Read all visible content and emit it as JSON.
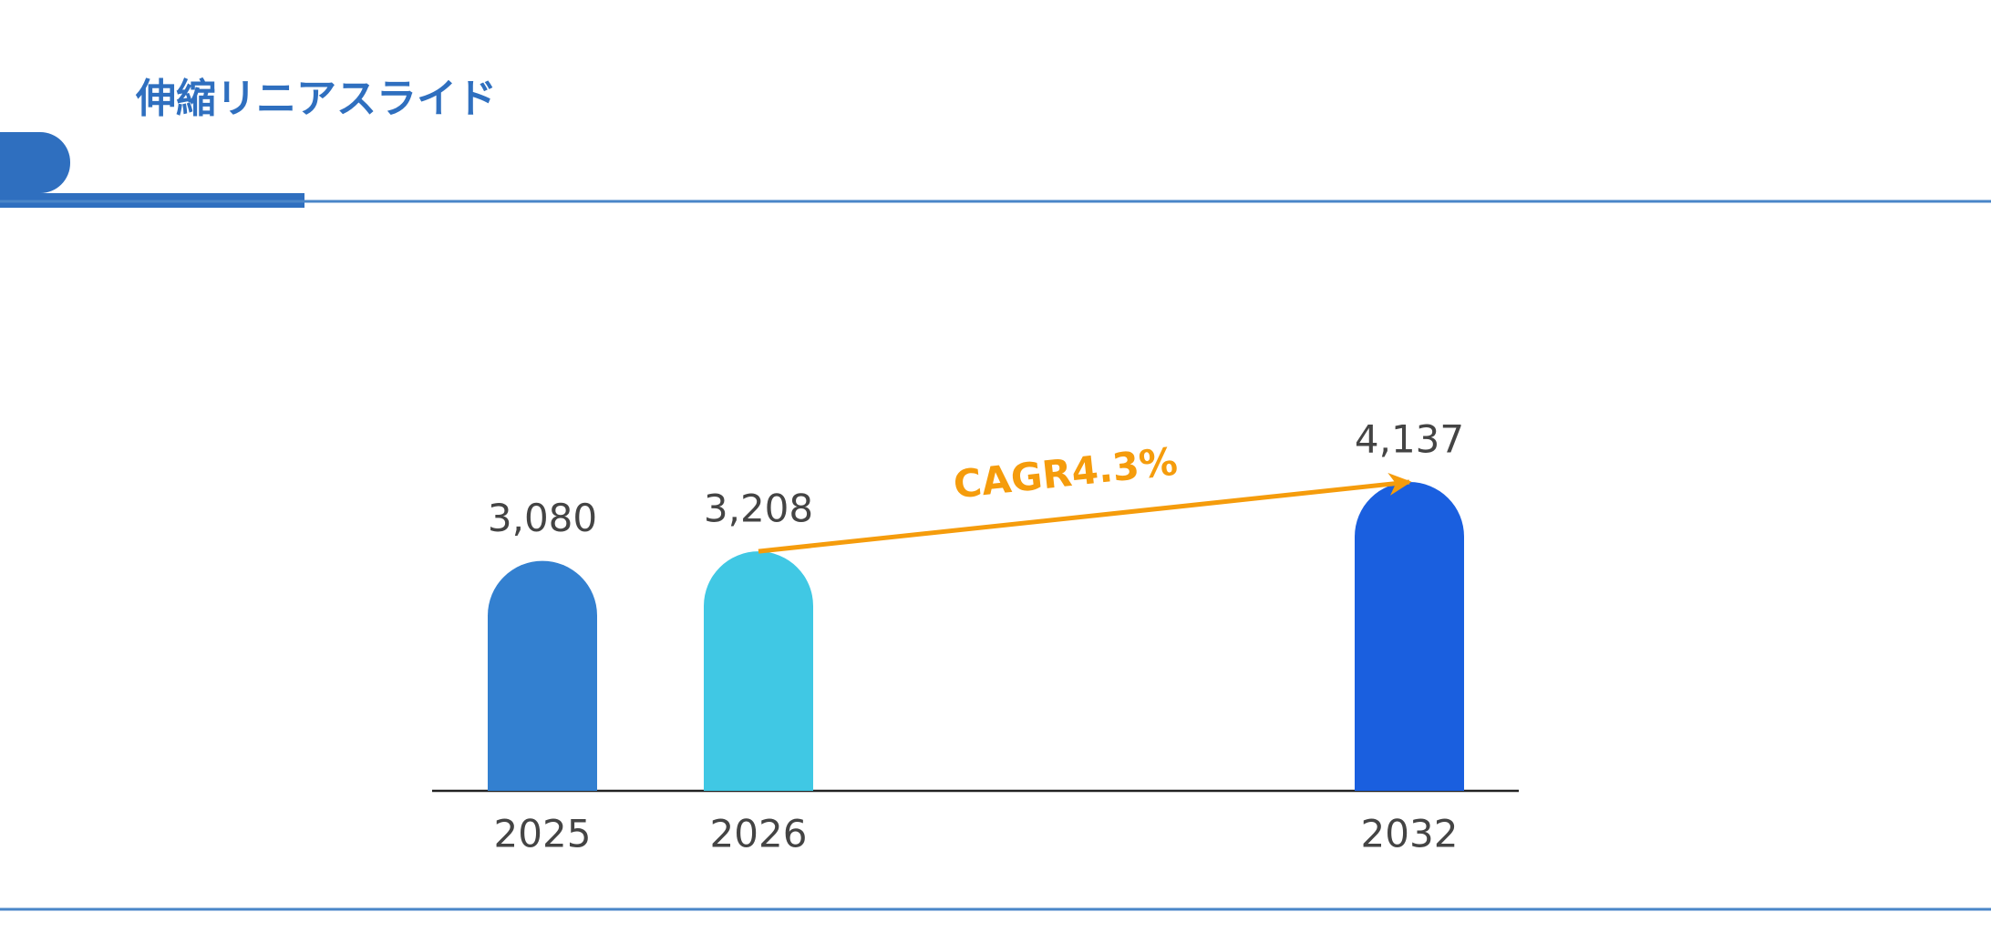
{
  "chart_data": {
    "type": "bar",
    "title": "伸縮リニアスライド",
    "categories": [
      "2025",
      "2026",
      "2032"
    ],
    "values": [
      3080,
      3208,
      4137
    ],
    "value_labels": [
      "3,080",
      "3,208",
      "4,137"
    ],
    "colors": [
      "#3380d0",
      "#40c8e4",
      "#1a5fdf"
    ],
    "annotation": "CAGR4.3%"
  }
}
